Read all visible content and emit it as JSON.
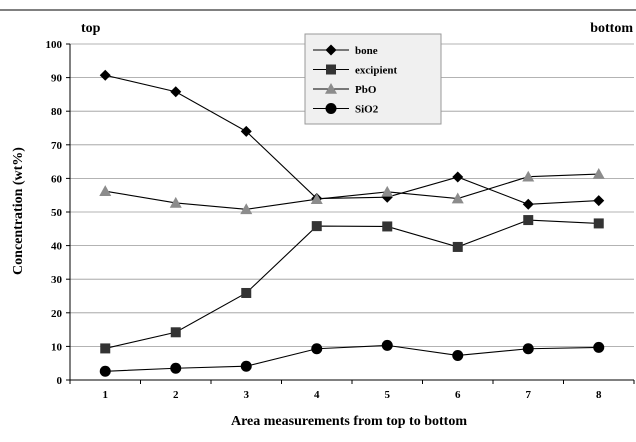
{
  "chart_data": {
    "type": "line",
    "title": "",
    "xlabel": "Area measurements from top to bottom",
    "ylabel": "Concentration (wt%)",
    "corner_labels": {
      "left": "top",
      "right": "bottom"
    },
    "categories": [
      "1",
      "2",
      "3",
      "4",
      "5",
      "6",
      "7",
      "8"
    ],
    "ylim": [
      0,
      100
    ],
    "yticks": [
      0,
      10,
      20,
      30,
      40,
      50,
      60,
      70,
      80,
      90,
      100
    ],
    "grid": "horizontal",
    "legend": "top-center",
    "series": [
      {
        "name": "bone",
        "marker": "diamond",
        "color": "#000000",
        "values": [
          90.7,
          85.8,
          74.0,
          54.0,
          54.4,
          60.4,
          52.3,
          53.4
        ]
      },
      {
        "name": "excipient",
        "marker": "square",
        "color": "#333333",
        "values": [
          9.4,
          14.2,
          25.9,
          45.8,
          45.7,
          39.6,
          47.6,
          46.6
        ]
      },
      {
        "name": "PbO",
        "marker": "triangle",
        "color": "#8c8c8c",
        "values": [
          56.2,
          52.7,
          50.8,
          53.8,
          56.0,
          54.0,
          60.5,
          61.3
        ]
      },
      {
        "name": "SiO2",
        "marker": "circle",
        "color": "#000000",
        "values": [
          2.6,
          3.5,
          4.1,
          9.3,
          10.3,
          7.3,
          9.3,
          9.7
        ]
      }
    ]
  }
}
